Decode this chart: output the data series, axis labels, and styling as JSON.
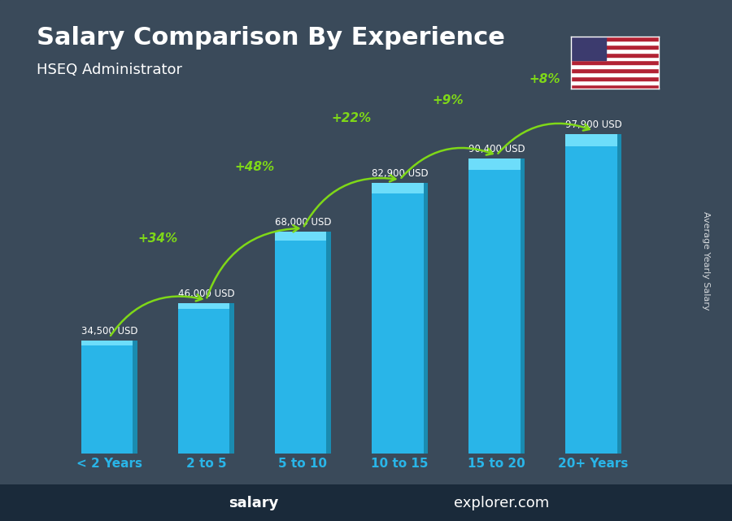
{
  "title": "Salary Comparison By Experience",
  "subtitle": "HSEQ Administrator",
  "categories": [
    "< 2 Years",
    "2 to 5",
    "5 to 10",
    "10 to 15",
    "15 to 20",
    "20+ Years"
  ],
  "values": [
    34500,
    46000,
    68000,
    82900,
    90400,
    97900
  ],
  "labels": [
    "34,500 USD",
    "46,000 USD",
    "68,000 USD",
    "82,900 USD",
    "90,400 USD",
    "97,900 USD"
  ],
  "pct_changes": [
    "+34%",
    "+48%",
    "+22%",
    "+9%",
    "+8%"
  ],
  "bar_color": "#29ABE2",
  "bar_color_top": "#5DCFEF",
  "pct_color": "#7FD818",
  "label_color": "#FFFFFF",
  "title_color": "#FFFFFF",
  "subtitle_color": "#FFFFFF",
  "xlabel_color": "#29ABE2",
  "footer_text": "salaryexplorer.com",
  "footer_bold": "salary",
  "ylabel_text": "Average Yearly Salary",
  "background_color": "#1a1a2e",
  "ylim": [
    0,
    115000
  ]
}
